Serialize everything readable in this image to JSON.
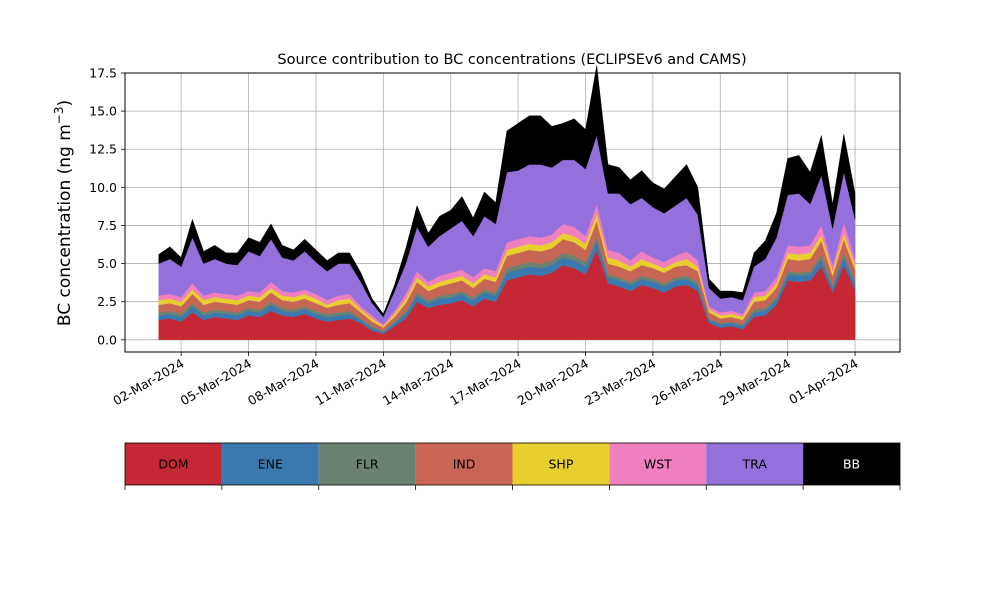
{
  "chart_data": {
    "type": "area",
    "stacked": true,
    "title": "Source contribution to BC concentrations (ECLIPSEv6 and CAMS)",
    "ylabel_main": "BC concentration (ng m",
    "ylabel_sup": "−3",
    "ylabel_close": ")",
    "xlabel": "",
    "ylim": [
      -0.8,
      17.5
    ],
    "yticks": [
      "0.0",
      "2.5",
      "5.0",
      "7.5",
      "10.0",
      "12.5",
      "15.0",
      "17.5"
    ],
    "xlim": [
      "2024-02-28T12:00",
      "2024-04-03T00:00"
    ],
    "xticks": [
      {
        "date": "2024-03-02",
        "label": "02-Mar-2024"
      },
      {
        "date": "2024-03-05",
        "label": "05-Mar-2024"
      },
      {
        "date": "2024-03-08",
        "label": "08-Mar-2024"
      },
      {
        "date": "2024-03-11",
        "label": "11-Mar-2024"
      },
      {
        "date": "2024-03-14",
        "label": "14-Mar-2024"
      },
      {
        "date": "2024-03-17",
        "label": "17-Mar-2024"
      },
      {
        "date": "2024-03-20",
        "label": "20-Mar-2024"
      },
      {
        "date": "2024-03-23",
        "label": "23-Mar-2024"
      },
      {
        "date": "2024-03-26",
        "label": "26-Mar-2024"
      },
      {
        "date": "2024-03-29",
        "label": "29-Mar-2024"
      },
      {
        "date": "2024-04-01",
        "label": "01-Apr-2024"
      }
    ],
    "grid": true,
    "legend_position": "below",
    "x": [
      "2024-03-01T00:00",
      "2024-03-01T12:00",
      "2024-03-02T00:00",
      "2024-03-02T12:00",
      "2024-03-03T00:00",
      "2024-03-03T12:00",
      "2024-03-04T00:00",
      "2024-03-04T12:00",
      "2024-03-05T00:00",
      "2024-03-05T12:00",
      "2024-03-06T00:00",
      "2024-03-06T12:00",
      "2024-03-07T00:00",
      "2024-03-07T12:00",
      "2024-03-08T00:00",
      "2024-03-08T12:00",
      "2024-03-09T00:00",
      "2024-03-09T12:00",
      "2024-03-10T00:00",
      "2024-03-10T12:00",
      "2024-03-11T00:00",
      "2024-03-11T12:00",
      "2024-03-12T00:00",
      "2024-03-12T12:00",
      "2024-03-13T00:00",
      "2024-03-13T12:00",
      "2024-03-14T00:00",
      "2024-03-14T12:00",
      "2024-03-15T00:00",
      "2024-03-15T12:00",
      "2024-03-16T00:00",
      "2024-03-16T12:00",
      "2024-03-17T00:00",
      "2024-03-17T12:00",
      "2024-03-18T00:00",
      "2024-03-18T12:00",
      "2024-03-19T00:00",
      "2024-03-19T12:00",
      "2024-03-20T00:00",
      "2024-03-20T12:00",
      "2024-03-21T00:00",
      "2024-03-21T12:00",
      "2024-03-22T00:00",
      "2024-03-22T12:00",
      "2024-03-23T00:00",
      "2024-03-23T12:00",
      "2024-03-24T00:00",
      "2024-03-24T12:00",
      "2024-03-25T00:00",
      "2024-03-25T12:00",
      "2024-03-26T00:00",
      "2024-03-26T12:00",
      "2024-03-27T00:00",
      "2024-03-27T12:00",
      "2024-03-28T00:00",
      "2024-03-28T12:00",
      "2024-03-29T00:00",
      "2024-03-29T12:00",
      "2024-03-30T00:00",
      "2024-03-30T12:00",
      "2024-03-31T00:00",
      "2024-03-31T12:00",
      "2024-04-01T00:00"
    ],
    "series": [
      {
        "name": "DOM",
        "color": "#c52834",
        "values": [
          1.3,
          1.4,
          1.2,
          1.8,
          1.3,
          1.5,
          1.4,
          1.3,
          1.6,
          1.5,
          1.9,
          1.6,
          1.5,
          1.7,
          1.4,
          1.2,
          1.3,
          1.4,
          1.1,
          0.6,
          0.4,
          0.9,
          1.4,
          2.5,
          2.1,
          2.3,
          2.4,
          2.6,
          2.2,
          2.7,
          2.5,
          3.9,
          4.1,
          4.3,
          4.2,
          4.4,
          4.9,
          4.7,
          4.3,
          5.9,
          3.7,
          3.5,
          3.2,
          3.6,
          3.4,
          3.1,
          3.5,
          3.6,
          3.2,
          1.1,
          0.8,
          0.9,
          0.7,
          1.5,
          1.6,
          2.3,
          3.9,
          3.8,
          3.9,
          4.8,
          3.1,
          4.9,
          3.3
        ]
      },
      {
        "name": "ENE",
        "color": "#3a79b0",
        "values": [
          0.3,
          0.3,
          0.3,
          0.4,
          0.3,
          0.3,
          0.3,
          0.3,
          0.3,
          0.3,
          0.4,
          0.3,
          0.3,
          0.3,
          0.3,
          0.3,
          0.3,
          0.3,
          0.2,
          0.2,
          0.1,
          0.2,
          0.3,
          0.4,
          0.3,
          0.4,
          0.4,
          0.4,
          0.4,
          0.4,
          0.4,
          0.5,
          0.5,
          0.5,
          0.5,
          0.5,
          0.5,
          0.5,
          0.5,
          0.6,
          0.4,
          0.4,
          0.4,
          0.4,
          0.4,
          0.4,
          0.4,
          0.4,
          0.4,
          0.2,
          0.2,
          0.2,
          0.2,
          0.3,
          0.3,
          0.3,
          0.4,
          0.4,
          0.4,
          0.5,
          0.3,
          0.5,
          0.4
        ]
      },
      {
        "name": "FLR",
        "color": "#6c8271",
        "values": [
          0.2,
          0.2,
          0.2,
          0.2,
          0.2,
          0.2,
          0.2,
          0.2,
          0.2,
          0.2,
          0.2,
          0.2,
          0.2,
          0.2,
          0.2,
          0.2,
          0.2,
          0.2,
          0.1,
          0.1,
          0.1,
          0.1,
          0.2,
          0.2,
          0.2,
          0.2,
          0.2,
          0.2,
          0.2,
          0.2,
          0.2,
          0.3,
          0.3,
          0.3,
          0.3,
          0.3,
          0.3,
          0.3,
          0.3,
          0.3,
          0.2,
          0.2,
          0.2,
          0.2,
          0.2,
          0.2,
          0.2,
          0.2,
          0.2,
          0.1,
          0.1,
          0.1,
          0.1,
          0.2,
          0.2,
          0.2,
          0.2,
          0.2,
          0.2,
          0.3,
          0.2,
          0.3,
          0.2
        ]
      },
      {
        "name": "IND",
        "color": "#c86656",
        "values": [
          0.5,
          0.5,
          0.5,
          0.6,
          0.5,
          0.5,
          0.5,
          0.5,
          0.5,
          0.5,
          0.6,
          0.5,
          0.5,
          0.5,
          0.5,
          0.4,
          0.5,
          0.5,
          0.4,
          0.3,
          0.2,
          0.3,
          0.5,
          0.7,
          0.6,
          0.6,
          0.7,
          0.7,
          0.6,
          0.7,
          0.7,
          0.8,
          0.8,
          0.8,
          0.8,
          0.8,
          0.9,
          0.9,
          0.8,
          1.0,
          0.7,
          0.7,
          0.7,
          0.7,
          0.7,
          0.7,
          0.7,
          0.7,
          0.7,
          0.4,
          0.3,
          0.3,
          0.3,
          0.5,
          0.5,
          0.6,
          0.8,
          0.8,
          0.8,
          0.9,
          0.6,
          0.9,
          0.7
        ]
      },
      {
        "name": "SHP",
        "color": "#e8cf2e",
        "values": [
          0.3,
          0.3,
          0.3,
          0.3,
          0.3,
          0.3,
          0.3,
          0.3,
          0.3,
          0.3,
          0.3,
          0.3,
          0.3,
          0.3,
          0.3,
          0.2,
          0.3,
          0.3,
          0.2,
          0.2,
          0.1,
          0.2,
          0.3,
          0.3,
          0.3,
          0.3,
          0.3,
          0.3,
          0.3,
          0.3,
          0.3,
          0.4,
          0.4,
          0.4,
          0.4,
          0.4,
          0.4,
          0.4,
          0.4,
          0.5,
          0.4,
          0.4,
          0.3,
          0.4,
          0.3,
          0.3,
          0.3,
          0.4,
          0.3,
          0.2,
          0.2,
          0.2,
          0.2,
          0.3,
          0.3,
          0.3,
          0.4,
          0.4,
          0.4,
          0.4,
          0.3,
          0.4,
          0.3
        ]
      },
      {
        "name": "WST",
        "color": "#f07fc0",
        "values": [
          0.3,
          0.3,
          0.3,
          0.4,
          0.3,
          0.3,
          0.3,
          0.3,
          0.3,
          0.3,
          0.4,
          0.3,
          0.3,
          0.3,
          0.3,
          0.3,
          0.3,
          0.3,
          0.2,
          0.2,
          0.1,
          0.2,
          0.3,
          0.4,
          0.3,
          0.4,
          0.4,
          0.4,
          0.4,
          0.4,
          0.4,
          0.5,
          0.5,
          0.5,
          0.5,
          0.5,
          0.6,
          0.6,
          0.5,
          0.6,
          0.5,
          0.5,
          0.4,
          0.5,
          0.4,
          0.4,
          0.4,
          0.5,
          0.4,
          0.2,
          0.2,
          0.2,
          0.2,
          0.3,
          0.3,
          0.4,
          0.5,
          0.5,
          0.5,
          0.6,
          0.4,
          0.7,
          0.4
        ]
      },
      {
        "name": "TRA",
        "color": "#9370db",
        "values": [
          2.1,
          2.3,
          2.0,
          3.0,
          2.1,
          2.2,
          2.0,
          2.0,
          2.6,
          2.4,
          2.8,
          2.2,
          2.1,
          2.5,
          2.1,
          1.9,
          2.1,
          2.0,
          1.6,
          0.8,
          0.5,
          1.3,
          2.0,
          2.9,
          2.3,
          2.6,
          2.9,
          3.2,
          2.7,
          3.4,
          3.1,
          4.6,
          4.5,
          4.7,
          4.8,
          4.4,
          4.2,
          4.4,
          4.4,
          4.5,
          3.7,
          3.9,
          3.7,
          3.5,
          3.3,
          3.2,
          3.3,
          3.5,
          3.0,
          1.2,
          0.9,
          0.9,
          0.9,
          1.7,
          2.1,
          2.6,
          3.3,
          3.5,
          2.7,
          3.3,
          2.4,
          3.3,
          2.6
        ]
      },
      {
        "name": "BB",
        "color": "#000000",
        "values": [
          0.6,
          0.8,
          0.6,
          1.2,
          0.8,
          0.9,
          0.7,
          0.8,
          0.9,
          0.9,
          1.0,
          0.8,
          0.7,
          0.8,
          0.8,
          0.7,
          0.7,
          0.7,
          0.6,
          0.3,
          0.2,
          0.4,
          1.0,
          1.4,
          0.9,
          1.3,
          1.2,
          1.6,
          1.2,
          1.6,
          1.4,
          2.7,
          3.1,
          3.2,
          3.2,
          2.7,
          2.4,
          2.7,
          2.6,
          4.6,
          1.9,
          1.7,
          1.6,
          1.8,
          1.6,
          1.6,
          1.9,
          2.2,
          1.8,
          0.6,
          0.5,
          0.4,
          0.5,
          0.9,
          1.2,
          1.6,
          2.4,
          2.5,
          2.1,
          2.6,
          1.6,
          2.5,
          1.7
        ]
      }
    ]
  }
}
